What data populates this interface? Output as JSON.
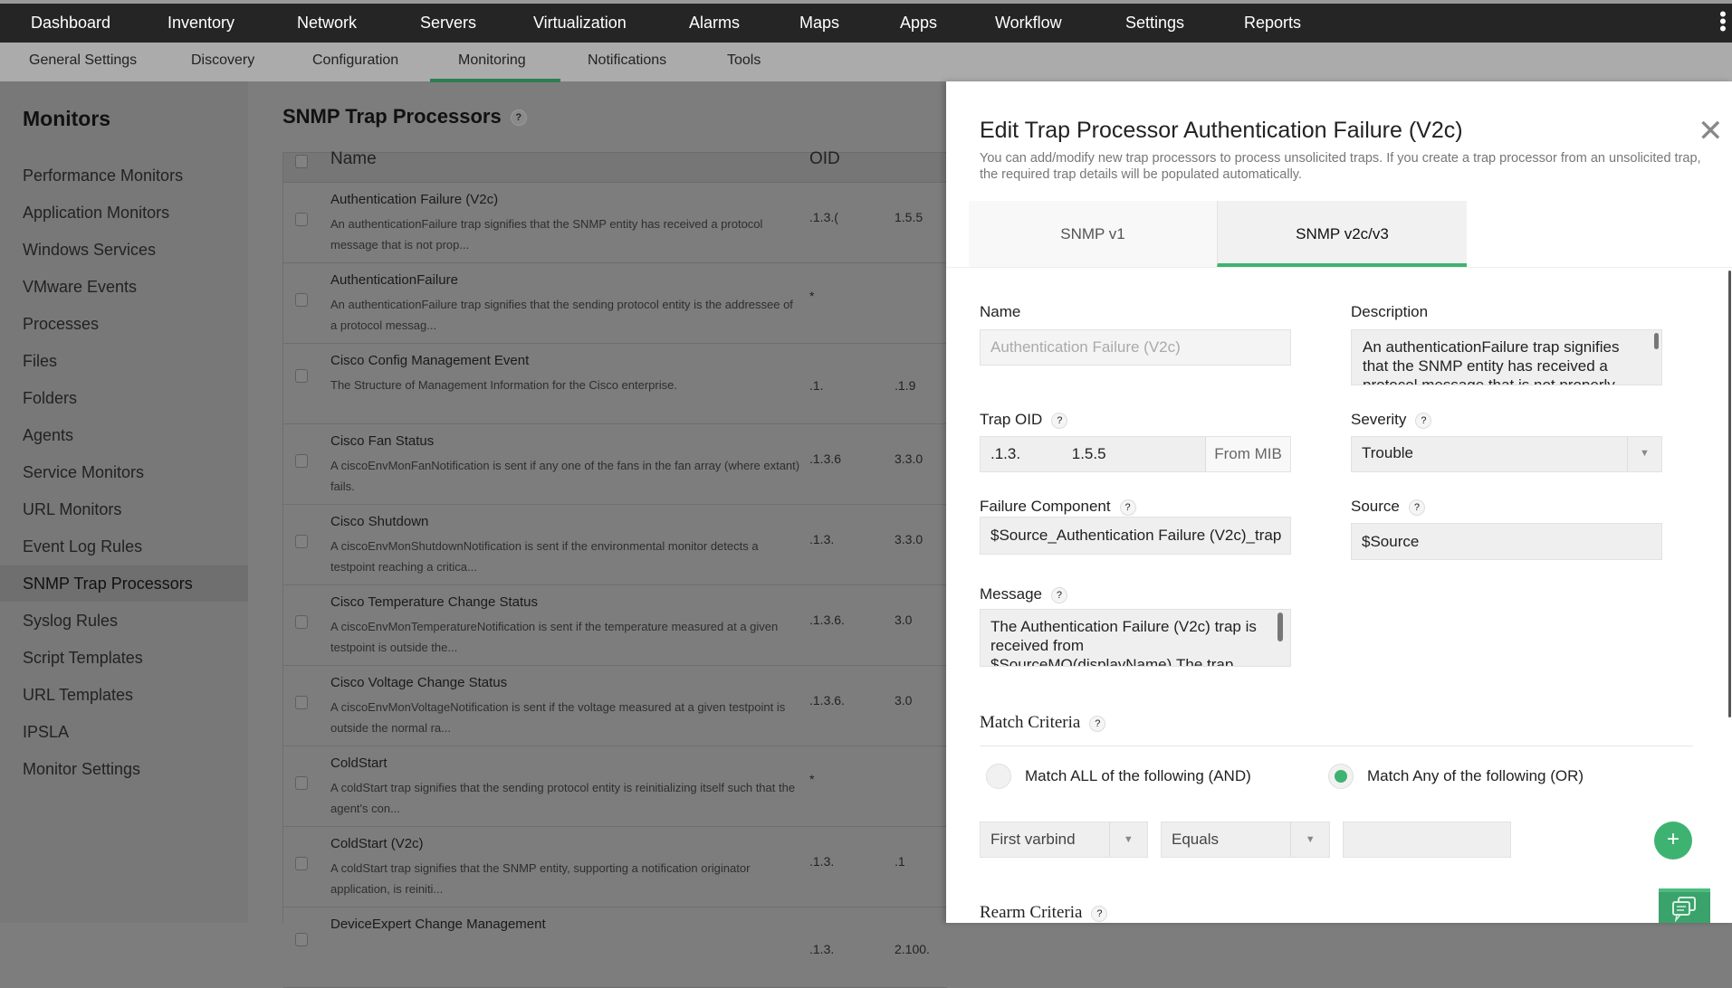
{
  "top_nav": [
    "Dashboard",
    "Inventory",
    "Network",
    "Servers",
    "Virtualization",
    "Alarms",
    "Maps",
    "Apps",
    "Workflow",
    "Settings",
    "Reports"
  ],
  "sub_nav": [
    "General Settings",
    "Discovery",
    "Configuration",
    "Monitoring",
    "Notifications",
    "Tools"
  ],
  "sub_nav_active": "Monitoring",
  "sidebar": {
    "title": "Monitors",
    "items": [
      "Performance Monitors",
      "Application Monitors",
      "Windows Services",
      "VMware Events",
      "Processes",
      "Files",
      "Folders",
      "Agents",
      "Service Monitors",
      "URL Monitors",
      "Event Log Rules",
      "SNMP Trap Processors",
      "Syslog Rules",
      "Script Templates",
      "URL Templates",
      "IPSLA",
      "Monitor Settings"
    ],
    "selected": "SNMP Trap Processors"
  },
  "main": {
    "title": "SNMP Trap Processors",
    "help": "?",
    "columns": [
      "Name",
      "OID"
    ],
    "rows": [
      {
        "name": "Authentication Failure (V2c)",
        "desc": "An authenticationFailure trap signifies that the SNMP entity has received a protocol message that is not prop...",
        "oid1": ".1.3.(",
        "oid2": "1.5.5"
      },
      {
        "name": "AuthenticationFailure",
        "desc": "An authenticationFailure trap signifies that the sending protocol entity is the addressee of a protocol messag...",
        "oid1": "*",
        "oid2": ""
      },
      {
        "name": "Cisco Config Management Event",
        "desc": "The Structure of Management Information for the Cisco enterprise.",
        "oid1": ".1.",
        "oid2": ".1.9"
      },
      {
        "name": "Cisco Fan Status",
        "desc": "A ciscoEnvMonFanNotification is sent if any one of the fans in the fan array (where extant) fails.",
        "oid1": ".1.3.6",
        "oid2": "3.3.0"
      },
      {
        "name": "Cisco Shutdown",
        "desc": "A ciscoEnvMonShutdownNotification is sent if the environmental monitor detects a testpoint reaching a critica...",
        "oid1": ".1.3.",
        "oid2": "3.3.0"
      },
      {
        "name": "Cisco Temperature Change Status",
        "desc": "A ciscoEnvMonTemperatureNotification is sent if the temperature measured at a given testpoint is outside the...",
        "oid1": ".1.3.6.",
        "oid2": "3.0"
      },
      {
        "name": "Cisco Voltage Change Status",
        "desc": "A ciscoEnvMonVoltageNotification is sent if the voltage measured at a given testpoint is outside the normal ra...",
        "oid1": ".1.3.6.",
        "oid2": "3.0"
      },
      {
        "name": "ColdStart",
        "desc": "A coldStart trap signifies that the sending protocol entity is reinitializing itself such that the agent's con...",
        "oid1": "*",
        "oid2": ""
      },
      {
        "name": "ColdStart (V2c)",
        "desc": "A coldStart trap signifies that the SNMP entity, supporting a notification originator application, is reiniti...",
        "oid1": ".1.3.",
        "oid2": ".1"
      },
      {
        "name": "DeviceExpert Change Management",
        "desc": "",
        "oid1": ".1.3.",
        "oid2": "2.100."
      }
    ]
  },
  "panel": {
    "title": "Edit Trap Processor Authentication Failure (V2c)",
    "subtitle": "You can add/modify new trap processors to process unsolicited traps. If you create a trap processor from an unsolicited trap, the required trap details will be populated automatically.",
    "tabs": [
      "SNMP v1",
      "SNMP v2c/v3"
    ],
    "active_tab": "SNMP v2c/v3",
    "name_label": "Name",
    "name_value": "Authentication Failure (V2c)",
    "description_label": "Description",
    "description_value": "An authenticationFailure trap signifies that the SNMP entity has received a protocol message that is not properly",
    "trap_oid_label": "Trap OID",
    "trap_oid_value": ".1.3.            1.5.5",
    "from_mib": "From MIB",
    "severity_label": "Severity",
    "severity_value": "Trouble",
    "failure_component_label": "Failure Component",
    "failure_component_value": "$Source_Authentication Failure (V2c)_trap",
    "source_label": "Source",
    "source_value": "$Source",
    "message_label": "Message",
    "message_value": "The Authentication Failure (V2c) trap is received from $SourceMO(displayName).The trap",
    "match_criteria_label": "Match Criteria",
    "match_all_label": "Match ALL of the following (AND)",
    "match_any_label": "Match Any of the following (OR)",
    "match_selected": "any",
    "criteria_field": "First varbind",
    "criteria_operator": "Equals",
    "criteria_value": "",
    "rearm_criteria_label": "Rearm Criteria",
    "help": "?"
  },
  "colors": {
    "accent": "#3eb371",
    "topbar": "#252525"
  }
}
